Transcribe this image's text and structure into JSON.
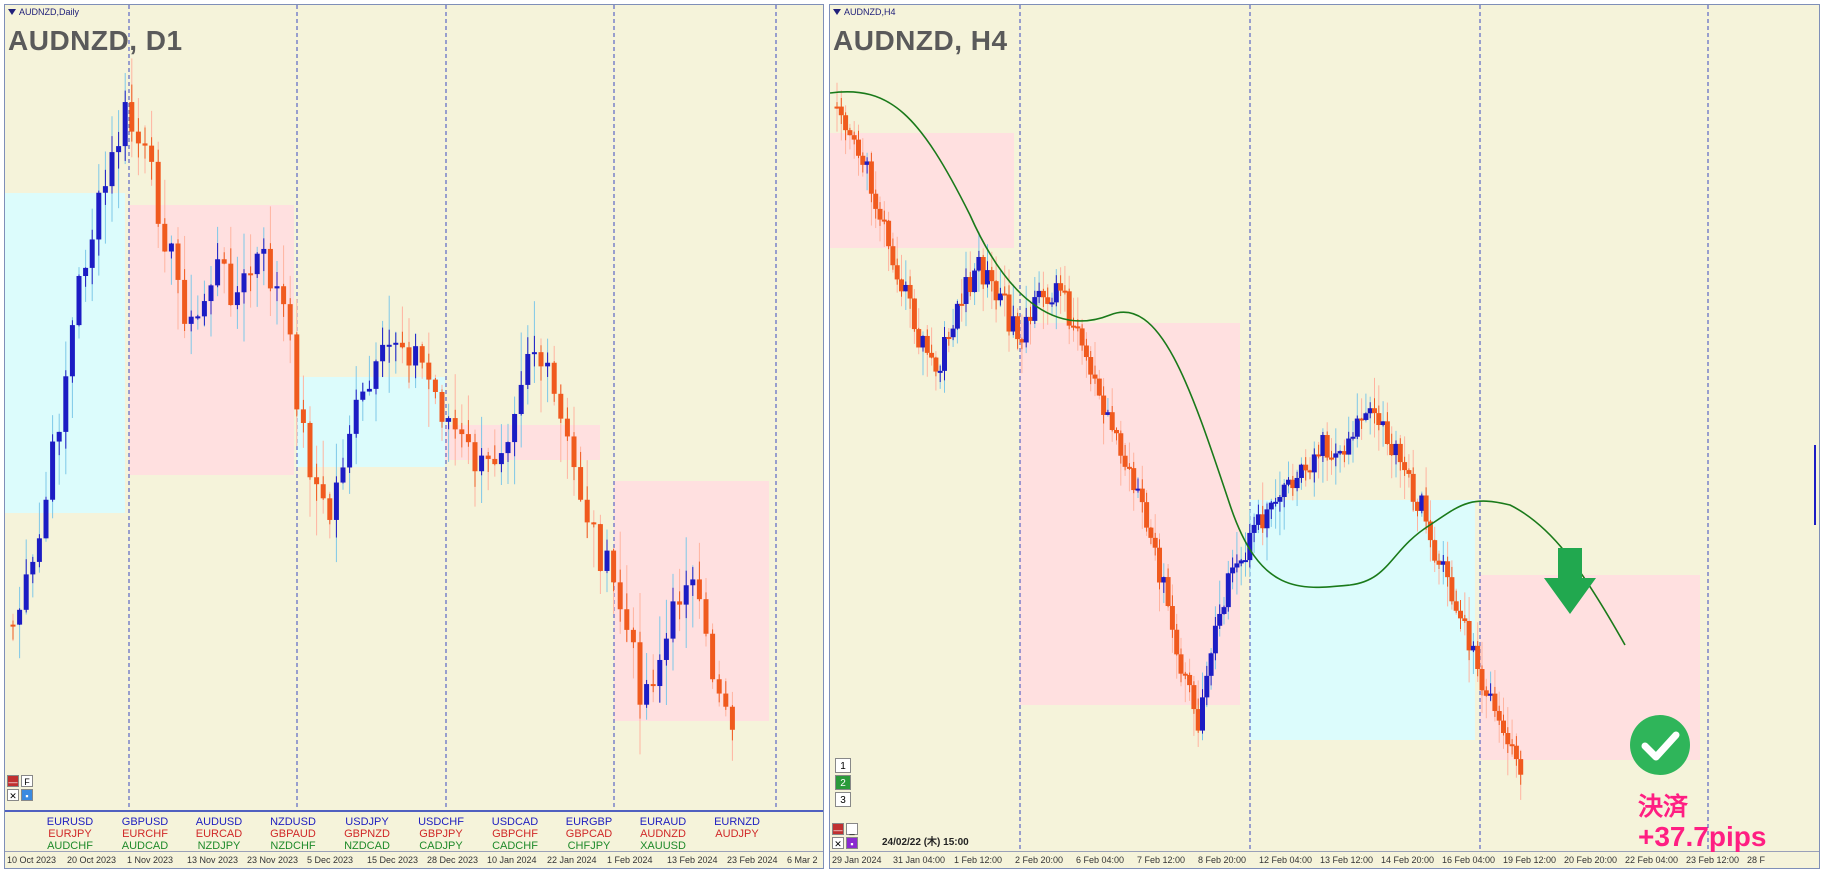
{
  "left_chart": {
    "caption": "AUDNZD,Daily",
    "title": "AUDNZD, D1",
    "x_labels": [
      "10 Oct 2023",
      "20 Oct 2023",
      "1 Nov 2023",
      "13 Nov 2023",
      "23 Nov 2023",
      "5 Dec 2023",
      "15 Dec 2023",
      "28 Dec 2023",
      "10 Jan 2024",
      "22 Jan 2024",
      "1 Feb 2024",
      "13 Feb 2024",
      "23 Feb 2024",
      "6 Mar 2"
    ],
    "symbols": [
      [
        "EURUSD",
        "EURJPY",
        "AUDCHF"
      ],
      [
        "GBPUSD",
        "EURCHF",
        "AUDCAD"
      ],
      [
        "AUDUSD",
        "EURCAD",
        "NZDJPY"
      ],
      [
        "NZDUSD",
        "GBPAUD",
        "NZDCHF"
      ],
      [
        "USDJPY",
        "GBPNZD",
        "NZDCAD"
      ],
      [
        "USDCHF",
        "GBPJPY",
        "CADJPY"
      ],
      [
        "USDCAD",
        "GBPCHF",
        "CADCHF"
      ],
      [
        "EURGBP",
        "GBPCAD",
        "CHFJPY"
      ],
      [
        "EURAUD",
        "AUDNZD",
        "XAUUSD"
      ],
      [
        "EURNZD",
        "AUDJPY",
        ""
      ]
    ],
    "symbol_row_colors": [
      "#2020c0",
      "#d02828",
      "#1f8a2a"
    ],
    "controls": [
      "F"
    ]
  },
  "right_chart": {
    "caption": "AUDNZD,H4",
    "title": "AUDNZD, H4",
    "x_labels": [
      "29 Jan 2024",
      "31 Jan 04:00",
      "1 Feb 12:00",
      "2 Feb 20:00",
      "6 Feb 04:00",
      "7 Feb 12:00",
      "8 Feb 20:00",
      "12 Feb 04:00",
      "13 Feb 12:00",
      "14 Feb 20:00",
      "16 Feb 04:00",
      "19 Feb 12:00",
      "20 Feb 20:00",
      "22 Feb 04:00",
      "23 Feb 12:00",
      "28 F"
    ],
    "period_buttons": [
      "1",
      "2",
      "3"
    ],
    "datetime": "24/02/22 (木) 15:00"
  },
  "result": {
    "label": "決済",
    "pips": "+37.7pips"
  },
  "colors": {
    "bull": "#1c1cc4",
    "bear": "#f05a1e",
    "wick_bull": "#7ec8e8",
    "wick_bear": "#ffb4a0",
    "box_blue": "#dcfcfc",
    "box_pink": "#ffe0e0",
    "ma": "#1a7a1a",
    "grid": "#3a4ac0",
    "check": "#2fb55a",
    "arrow": "#21a84f",
    "result_text": "#ff1e82"
  },
  "icons": [
    "check-circle-icon",
    "down-arrow-icon",
    "close-icon",
    "minimize-icon"
  ]
}
